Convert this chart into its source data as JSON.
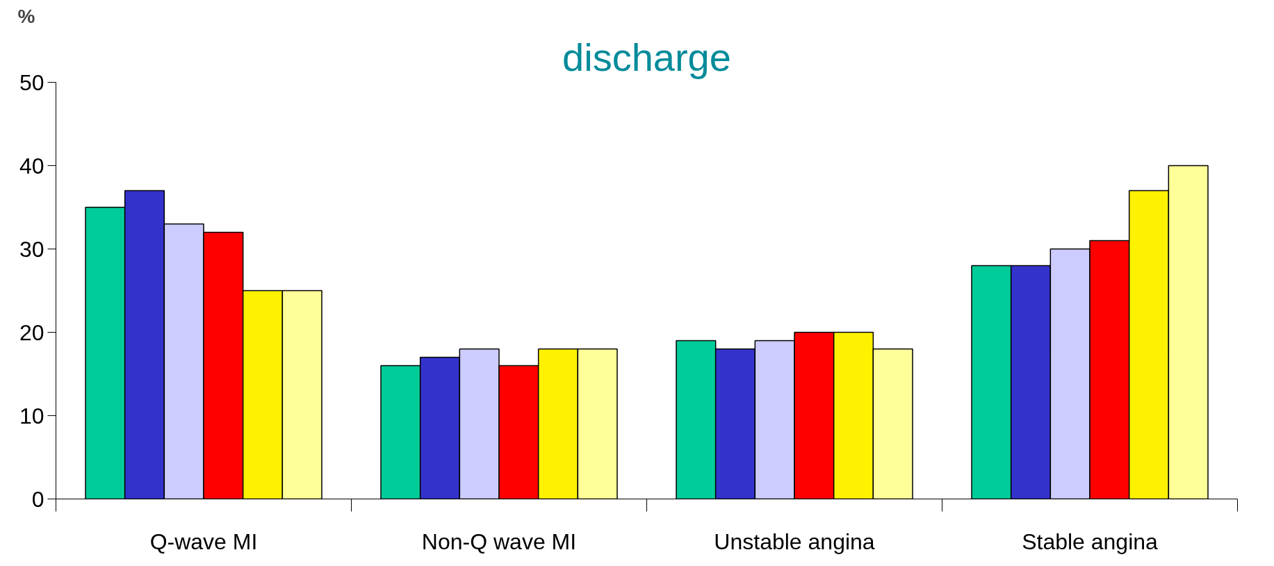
{
  "chart_data": {
    "type": "bar",
    "title": "discharge",
    "ylabel": "%",
    "categories": [
      "Q-wave MI",
      "Non-Q wave MI",
      "Unstable angina",
      "Stable angina"
    ],
    "series": [
      {
        "color": "#00cc99",
        "values": [
          35,
          16,
          19,
          28
        ]
      },
      {
        "color": "#3333cc",
        "values": [
          37,
          17,
          18,
          28
        ]
      },
      {
        "color": "#ccccff",
        "values": [
          33,
          18,
          19,
          30
        ]
      },
      {
        "color": "#ff0000",
        "values": [
          32,
          16,
          20,
          31
        ]
      },
      {
        "color": "#fff200",
        "values": [
          25,
          18,
          20,
          37
        ]
      },
      {
        "color": "#ffff99",
        "values": [
          25,
          18,
          18,
          40
        ]
      }
    ],
    "ylim": [
      0,
      50
    ],
    "yticks": [
      0,
      10,
      20,
      30,
      40,
      50
    ],
    "grid": false
  }
}
